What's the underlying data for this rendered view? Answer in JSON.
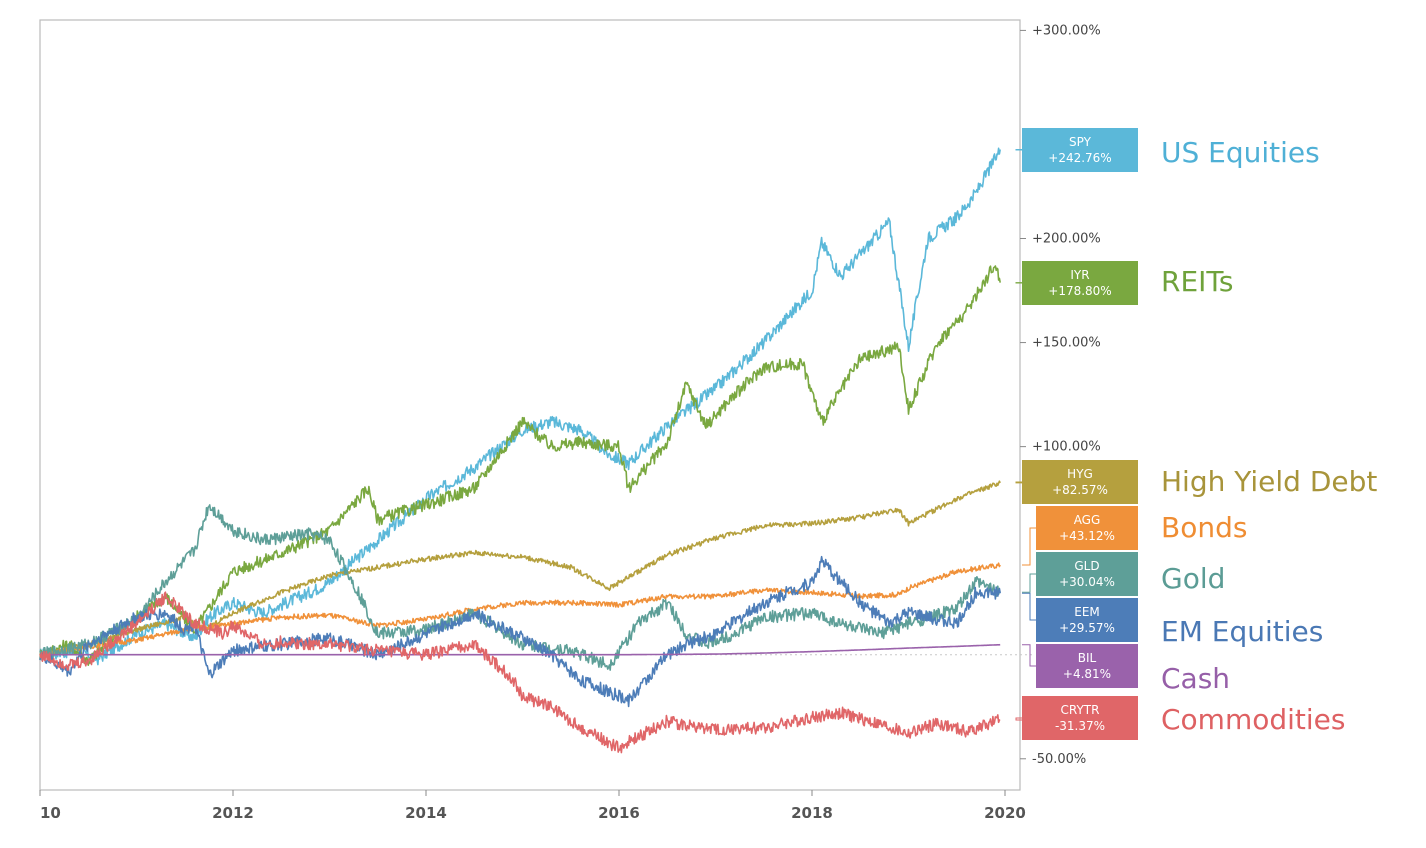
{
  "chart_data": {
    "type": "line",
    "title": "",
    "xlabel": "",
    "ylabel": "",
    "x_ticks": [
      "10",
      "2012",
      "2014",
      "2016",
      "2018",
      "2020"
    ],
    "y_ticks": [
      {
        "value": 300,
        "label": "+300.00%"
      },
      {
        "value": 200,
        "label": "+200.00%"
      },
      {
        "value": 150,
        "label": "+150.00%"
      },
      {
        "value": 100,
        "label": "+100.00%"
      },
      {
        "value": -50,
        "label": "-50.00%"
      }
    ],
    "xlim": [
      2010.0,
      2020.0
    ],
    "ylim": [
      -65,
      305
    ],
    "grid": false,
    "legend_position": "right",
    "series": [
      {
        "ticker": "SPY",
        "value_label": "+242.76%",
        "name": "US Equities",
        "color": "#5bb8d9",
        "text_color": "#4fb0d6",
        "x": [
          2010.0,
          2010.4,
          2010.6,
          2011.0,
          2011.3,
          2011.6,
          2011.75,
          2012.0,
          2012.3,
          2012.8,
          2013.0,
          2013.5,
          2014.0,
          2014.5,
          2015.0,
          2015.3,
          2015.6,
          2015.9,
          2016.1,
          2016.5,
          2017.0,
          2017.5,
          2018.0,
          2018.1,
          2018.3,
          2018.8,
          2019.0,
          2019.2,
          2019.5,
          2019.7,
          2019.95
        ],
        "y": [
          0,
          2,
          -2,
          10,
          15,
          8,
          18,
          25,
          20,
          30,
          35,
          55,
          75,
          90,
          108,
          112,
          108,
          96,
          92,
          110,
          128,
          150,
          175,
          198,
          182,
          208,
          148,
          200,
          210,
          222,
          242.76
        ]
      },
      {
        "ticker": "IYR",
        "value_label": "+178.80%",
        "name": "REITs",
        "color": "#7aa840",
        "text_color": "#6fa23b",
        "x": [
          2010.0,
          2010.3,
          2010.5,
          2011.0,
          2011.3,
          2011.6,
          2011.75,
          2012.0,
          2012.3,
          2012.8,
          2013.0,
          2013.4,
          2013.5,
          2014.0,
          2014.5,
          2015.0,
          2015.3,
          2015.6,
          2016.0,
          2016.1,
          2016.5,
          2016.7,
          2016.9,
          2017.2,
          2017.5,
          2017.9,
          2018.1,
          2018.5,
          2018.9,
          2019.0,
          2019.3,
          2019.6,
          2019.9,
          2019.95
        ],
        "y": [
          0,
          5,
          -3,
          18,
          28,
          12,
          22,
          40,
          45,
          55,
          60,
          80,
          65,
          72,
          80,
          112,
          100,
          102,
          100,
          80,
          102,
          130,
          110,
          125,
          138,
          140,
          112,
          142,
          148,
          118,
          150,
          165,
          188,
          178.8
        ]
      },
      {
        "ticker": "HYG",
        "value_label": "+82.57%",
        "name": "High Yield Debt",
        "color": "#b5a03e",
        "text_color": "#a8943a",
        "x": [
          2010.0,
          2010.5,
          2011.0,
          2011.5,
          2011.7,
          2012.0,
          2012.5,
          2013.0,
          2013.5,
          2014.0,
          2014.5,
          2015.0,
          2015.5,
          2015.9,
          2016.2,
          2016.5,
          2017.0,
          2017.5,
          2018.0,
          2018.5,
          2018.9,
          2019.0,
          2019.5,
          2019.95
        ],
        "y": [
          0,
          5,
          12,
          18,
          12,
          20,
          30,
          38,
          42,
          46,
          49,
          47,
          42,
          32,
          40,
          48,
          56,
          62,
          63,
          66,
          70,
          63,
          75,
          82.57
        ]
      },
      {
        "ticker": "AGG",
        "value_label": "+43.12%",
        "name": "Bonds",
        "color": "#f0913a",
        "text_color": "#ef8d33",
        "x": [
          2010.0,
          2010.5,
          2011.0,
          2011.5,
          2012.0,
          2012.5,
          2013.0,
          2013.5,
          2014.0,
          2014.5,
          2015.0,
          2015.5,
          2016.0,
          2016.5,
          2017.0,
          2017.5,
          2018.0,
          2018.5,
          2018.9,
          2019.0,
          2019.5,
          2019.95
        ],
        "y": [
          0,
          4,
          7,
          12,
          15,
          18,
          19,
          14,
          17,
          22,
          25,
          25,
          24,
          28,
          28,
          31,
          30,
          28,
          29,
          32,
          40,
          43.12
        ]
      },
      {
        "ticker": "GLD",
        "value_label": "+30.04%",
        "name": "Gold",
        "color": "#5e9f98",
        "text_color": "#5b9c95",
        "x": [
          2010.0,
          2010.5,
          2011.0,
          2011.3,
          2011.6,
          2011.75,
          2012.0,
          2012.3,
          2012.8,
          2013.0,
          2013.3,
          2013.5,
          2014.0,
          2014.5,
          2015.0,
          2015.5,
          2015.9,
          2016.2,
          2016.5,
          2016.7,
          2016.9,
          2017.2,
          2017.5,
          2018.0,
          2018.3,
          2018.7,
          2019.0,
          2019.5,
          2019.7,
          2019.95
        ],
        "y": [
          0,
          5,
          17,
          35,
          50,
          72,
          60,
          55,
          58,
          55,
          30,
          10,
          12,
          20,
          5,
          2,
          -5,
          15,
          25,
          10,
          5,
          10,
          18,
          20,
          15,
          10,
          15,
          22,
          35,
          30.04
        ]
      },
      {
        "ticker": "EEM",
        "value_label": "+29.57%",
        "name": "EM Equities",
        "color": "#4d7db8",
        "text_color": "#4a78b4",
        "x": [
          2010.0,
          2010.3,
          2010.5,
          2011.0,
          2011.3,
          2011.5,
          2011.6,
          2011.75,
          2012.0,
          2012.5,
          2013.0,
          2013.5,
          2014.0,
          2014.5,
          2015.0,
          2015.3,
          2015.6,
          2015.9,
          2016.1,
          2016.5,
          2016.7,
          2017.0,
          2017.5,
          2018.0,
          2018.1,
          2018.5,
          2018.8,
          2019.0,
          2019.5,
          2019.7,
          2019.95
        ],
        "y": [
          0,
          -8,
          5,
          18,
          20,
          12,
          15,
          -10,
          2,
          5,
          8,
          0,
          10,
          20,
          8,
          0,
          -12,
          -18,
          -22,
          0,
          5,
          10,
          25,
          35,
          45,
          25,
          15,
          20,
          15,
          30,
          29.57
        ]
      },
      {
        "ticker": "BIL",
        "value_label": "+4.81%",
        "name": "Cash",
        "color": "#9a62ab",
        "text_color": "#965fa8",
        "x": [
          2010.0,
          2011.0,
          2012.0,
          2013.0,
          2014.0,
          2015.0,
          2016.0,
          2017.0,
          2017.5,
          2018.0,
          2018.5,
          2019.0,
          2019.5,
          2019.95
        ],
        "y": [
          0,
          0,
          0,
          0,
          0,
          0,
          0,
          0.3,
          0.8,
          1.5,
          2.3,
          3.2,
          4.0,
          4.81
        ]
      },
      {
        "ticker": "CRYTR",
        "value_label": "-31.37%",
        "name": "Commodities",
        "color": "#e06668",
        "text_color": "#de6163",
        "x": [
          2010.0,
          2010.3,
          2010.5,
          2010.8,
          2011.0,
          2011.3,
          2011.6,
          2011.9,
          2012.0,
          2012.3,
          2012.5,
          2013.0,
          2013.5,
          2014.0,
          2014.5,
          2014.9,
          2015.0,
          2015.3,
          2015.6,
          2016.0,
          2016.1,
          2016.5,
          2017.0,
          2017.5,
          2018.0,
          2018.3,
          2018.6,
          2019.0,
          2019.3,
          2019.6,
          2019.95
        ],
        "y": [
          0,
          -5,
          -3,
          8,
          15,
          28,
          15,
          10,
          14,
          5,
          6,
          5,
          2,
          0,
          5,
          -12,
          -20,
          -25,
          -35,
          -45,
          -42,
          -32,
          -36,
          -35,
          -30,
          -28,
          -32,
          -38,
          -33,
          -37,
          -31.37
        ]
      }
    ]
  }
}
